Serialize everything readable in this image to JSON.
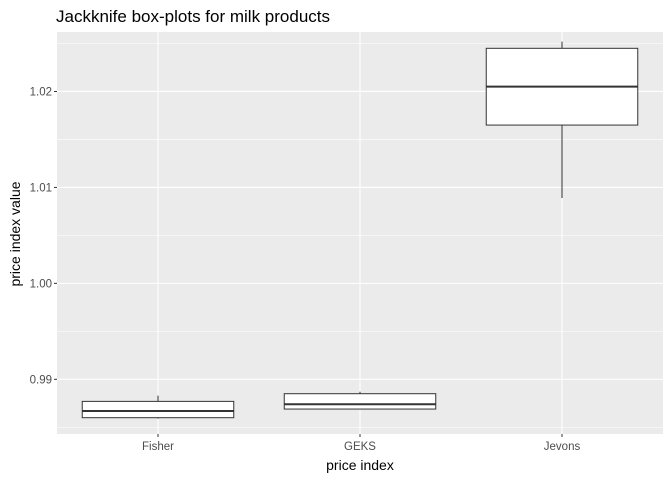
{
  "chart_data": {
    "type": "box",
    "title": "Jackknife box-plots for milk products",
    "xlabel": "price index",
    "ylabel": "price index value",
    "categories": [
      "Fisher",
      "GEKS",
      "Jevons"
    ],
    "yticks": [
      "0.99",
      "1.00",
      "1.01",
      "1.02"
    ],
    "ylim": [
      0.9843,
      1.0262
    ],
    "grid": true,
    "legend": "none",
    "boxes": [
      {
        "category": "Fisher",
        "whisker_low": 0.9859,
        "q1": 0.986,
        "median": 0.9867,
        "q3": 0.9877,
        "whisker_high": 0.9883
      },
      {
        "category": "GEKS",
        "whisker_low": 0.9869,
        "q1": 0.9869,
        "median": 0.9874,
        "q3": 0.9885,
        "whisker_high": 0.9887
      },
      {
        "category": "Jevons",
        "whisker_low": 1.0089,
        "q1": 1.0165,
        "median": 1.0205,
        "q3": 1.0245,
        "whisker_high": 1.0252
      }
    ],
    "colors": {
      "panel": "#ebebeb",
      "grid_major": "#ffffff",
      "box_fill": "#ffffff",
      "box_line": "#333333"
    }
  }
}
